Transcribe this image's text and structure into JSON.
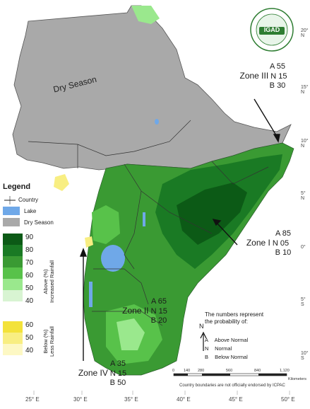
{
  "map": {
    "dry_season_label": "Dry Season",
    "zones": [
      {
        "name": "Zone III",
        "above": "A 55",
        "normal": "N 15",
        "below": "B 30"
      },
      {
        "name": "Zone I",
        "above": "A 85",
        "normal": "N 05",
        "below": "B 10"
      },
      {
        "name": "Zone II",
        "above": "A 65",
        "normal": "N 15",
        "below": "B 20"
      },
      {
        "name": "Zone IV",
        "above": "A 35",
        "normal": "N 15",
        "below": "B 50"
      }
    ]
  },
  "legend": {
    "title": "Legend",
    "country_label": "Country",
    "lake_label": "Lake",
    "dry_season_label": "Dry Season",
    "above_label_1": "Above (%)",
    "above_label_2": "Increased Rainfall",
    "below_label_1": "Below (%)",
    "below_label_2": "Less Rainfall",
    "above_values": [
      "90",
      "80",
      "70",
      "60",
      "50",
      "40"
    ],
    "below_values": [
      "60",
      "50",
      "40"
    ],
    "colors": {
      "above": [
        "#0c5a16",
        "#1a7a24",
        "#3a9a33",
        "#58c24a",
        "#9ae88d",
        "#d8f4d2"
      ],
      "below": [
        "#f3e23a",
        "#f8ee82",
        "#fdf8c4"
      ],
      "lake": "#6fa8e8",
      "dry": "#a9a9a9"
    }
  },
  "explanation": {
    "line1": "The numbers represent",
    "line2": "the probability of:",
    "items": [
      {
        "key": "A",
        "text": "Above Normal"
      },
      {
        "key": "N",
        "text": "Normal"
      },
      {
        "key": "B",
        "text": "Below Normal"
      }
    ]
  },
  "scale_bar": {
    "ticks": [
      "0",
      "140",
      "280",
      "560",
      "840",
      "1,120"
    ],
    "unit": "Kilometers"
  },
  "disclaimer": "Country boundaries are not officially endorsed by ICPAC",
  "logo_text": "IGAD",
  "north_label": "N",
  "longitudes": [
    "25° E",
    "30° E",
    "35° E",
    "40° E",
    "45° E",
    "50° E"
  ],
  "latitudes": [
    "20° N",
    "15° N",
    "10° N",
    "5° N",
    "0°",
    "5° S",
    "10° S"
  ]
}
